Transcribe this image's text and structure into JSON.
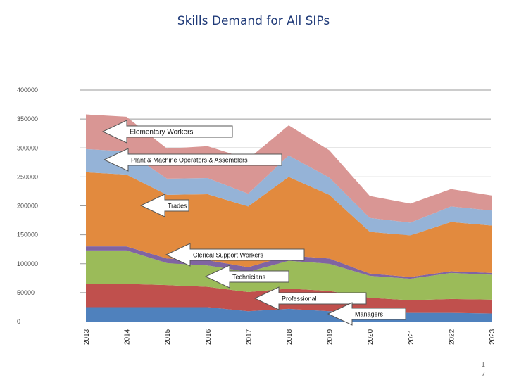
{
  "slide": {
    "title": "Skills Demand for All SIPs",
    "page_number": "17"
  },
  "chart_data": {
    "type": "area",
    "title": "Skills Demand for All SIPs",
    "xlabel": "",
    "ylabel": "",
    "stacked": true,
    "categories": [
      "2013",
      "2014",
      "2015",
      "2016",
      "2017",
      "2018",
      "2019",
      "2020",
      "2021",
      "2022",
      "2023"
    ],
    "y_ticks": [
      "0",
      "50000",
      "100000",
      "150000",
      "200000",
      "250000",
      "300000",
      "350000",
      "400000"
    ],
    "ylim": [
      0,
      400000
    ],
    "grid": true,
    "legend": "none",
    "series": [
      {
        "key": "managers",
        "color": "#4f81bd",
        "values": [
          25000,
          25000,
          25000,
          25000,
          18000,
          22000,
          18000,
          16000,
          15000,
          15000,
          14000
        ]
      },
      {
        "key": "professional",
        "color": "#c0504d",
        "values": [
          40000,
          40000,
          38000,
          35000,
          33000,
          35000,
          35000,
          25000,
          22000,
          24000,
          24000
        ]
      },
      {
        "key": "technicians",
        "color": "#9bbb59",
        "values": [
          58000,
          58000,
          38000,
          37000,
          35000,
          48000,
          47000,
          38000,
          37000,
          45000,
          43000
        ]
      },
      {
        "key": "clerical",
        "color": "#8064a2",
        "values": [
          7000,
          7000,
          8000,
          9000,
          8000,
          9000,
          9000,
          4000,
          3000,
          3000,
          3000
        ]
      },
      {
        "key": "trades",
        "color": "#e28a3e",
        "values": [
          128000,
          124000,
          110000,
          114000,
          105000,
          136000,
          110000,
          72000,
          72000,
          85000,
          82000
        ]
      },
      {
        "key": "plant",
        "color": "#95b3d7",
        "values": [
          40000,
          40000,
          28000,
          28000,
          22000,
          37000,
          30000,
          24000,
          22000,
          27000,
          26000
        ]
      },
      {
        "key": "elementary",
        "color": "#d99694",
        "values": [
          60000,
          60000,
          52000,
          55000,
          60000,
          52000,
          47000,
          38000,
          33000,
          30000,
          26000
        ]
      }
    ],
    "annotations": [
      {
        "series": "elementary",
        "text": "Elementary Workers"
      },
      {
        "series": "plant",
        "text": "Plant & Machine Operators & Assemblers"
      },
      {
        "series": "trades",
        "text": "Trades"
      },
      {
        "series": "clerical",
        "text": "Clerical Support Workers"
      },
      {
        "series": "technicians",
        "text": "Technicians"
      },
      {
        "series": "professional",
        "text": "Professional"
      },
      {
        "series": "managers",
        "text": "Managers"
      }
    ]
  }
}
